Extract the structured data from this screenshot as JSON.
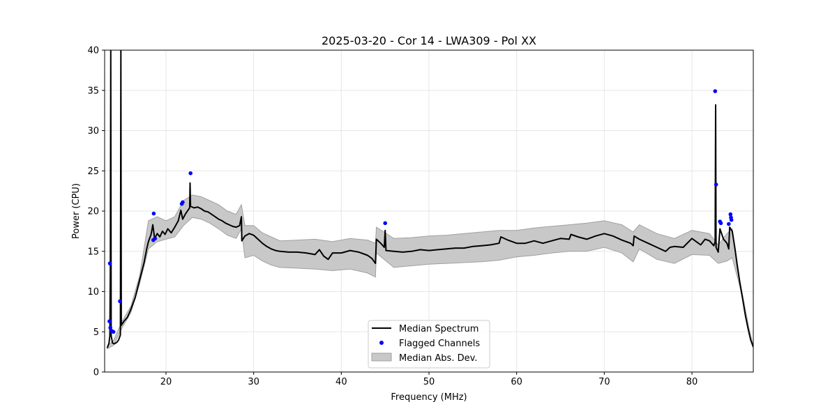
{
  "chart_data": {
    "type": "line",
    "title": "2025-03-20 - Cor 14 - LWA309 - Pol XX",
    "xlabel": "Frequency (MHz)",
    "ylabel": "Power (CPU)",
    "xlim": [
      13.0,
      87.0
    ],
    "ylim": [
      0,
      40
    ],
    "x_ticks": [
      20,
      30,
      40,
      50,
      60,
      70,
      80
    ],
    "y_ticks": [
      0,
      5,
      10,
      15,
      20,
      25,
      30,
      35,
      40
    ],
    "grid": true,
    "legend": {
      "placement": "lower-center",
      "entries": [
        "Median Spectrum",
        "Flagged Channels",
        "Median Abs. Dev."
      ]
    },
    "colors": {
      "median": "#000000",
      "flagged": "#0000ff",
      "band_fill": "#c8c8c8",
      "band_edge": "#a0a0a0",
      "grid": "#e6e6e6"
    },
    "series": [
      {
        "name": "Median Spectrum",
        "points": [
          [
            13.3,
            3.0
          ],
          [
            13.5,
            3.6
          ],
          [
            13.6,
            4.5
          ],
          [
            13.65,
            13.0
          ],
          [
            13.7,
            40.0
          ],
          [
            13.75,
            4.5
          ],
          [
            13.9,
            3.6
          ],
          [
            14.1,
            3.5
          ],
          [
            14.4,
            3.7
          ],
          [
            14.6,
            4.0
          ],
          [
            14.8,
            4.6
          ],
          [
            14.85,
            40.0
          ],
          [
            14.9,
            5.8
          ],
          [
            15.2,
            6.3
          ],
          [
            15.6,
            6.8
          ],
          [
            16.0,
            7.8
          ],
          [
            16.5,
            9.3
          ],
          [
            17.0,
            11.5
          ],
          [
            17.5,
            13.6
          ],
          [
            17.8,
            15.3
          ],
          [
            18.0,
            16.2
          ],
          [
            18.3,
            17.1
          ],
          [
            18.5,
            18.3
          ],
          [
            18.7,
            16.6
          ],
          [
            19.0,
            17.2
          ],
          [
            19.3,
            16.8
          ],
          [
            19.6,
            17.5
          ],
          [
            19.9,
            17.1
          ],
          [
            20.2,
            17.8
          ],
          [
            20.6,
            17.3
          ],
          [
            21.0,
            18.0
          ],
          [
            21.4,
            18.8
          ],
          [
            21.7,
            20.1
          ],
          [
            21.9,
            19.0
          ],
          [
            22.2,
            19.6
          ],
          [
            22.5,
            20.1
          ],
          [
            22.7,
            20.4
          ],
          [
            22.75,
            23.5
          ],
          [
            22.8,
            20.6
          ],
          [
            23.2,
            20.4
          ],
          [
            23.6,
            20.5
          ],
          [
            24.0,
            20.3
          ],
          [
            24.4,
            20.0
          ],
          [
            24.8,
            19.9
          ],
          [
            25.2,
            19.6
          ],
          [
            25.6,
            19.3
          ],
          [
            26.0,
            19.0
          ],
          [
            26.4,
            18.8
          ],
          [
            26.8,
            18.5
          ],
          [
            27.2,
            18.3
          ],
          [
            27.6,
            18.1
          ],
          [
            28.0,
            18.0
          ],
          [
            28.4,
            18.2
          ],
          [
            28.6,
            19.3
          ],
          [
            28.65,
            16.3
          ],
          [
            29.0,
            16.9
          ],
          [
            29.5,
            17.2
          ],
          [
            30.0,
            17.0
          ],
          [
            30.5,
            16.5
          ],
          [
            31.0,
            16.0
          ],
          [
            31.5,
            15.6
          ],
          [
            32.0,
            15.3
          ],
          [
            32.5,
            15.1
          ],
          [
            33.0,
            15.0
          ],
          [
            34.0,
            14.9
          ],
          [
            35.0,
            14.9
          ],
          [
            36.0,
            14.8
          ],
          [
            37.0,
            14.6
          ],
          [
            37.5,
            15.2
          ],
          [
            38.0,
            14.4
          ],
          [
            38.5,
            14.0
          ],
          [
            39.0,
            14.8
          ],
          [
            40.0,
            14.8
          ],
          [
            41.0,
            15.1
          ],
          [
            42.0,
            14.9
          ],
          [
            43.0,
            14.5
          ],
          [
            43.5,
            14.1
          ],
          [
            43.9,
            13.5
          ],
          [
            44.0,
            16.5
          ],
          [
            44.5,
            16.0
          ],
          [
            44.9,
            15.5
          ],
          [
            45.0,
            17.6
          ],
          [
            45.1,
            15.1
          ],
          [
            46.0,
            15.0
          ],
          [
            47.0,
            14.9
          ],
          [
            48.0,
            15.0
          ],
          [
            49.0,
            15.2
          ],
          [
            50.0,
            15.1
          ],
          [
            51.0,
            15.2
          ],
          [
            52.0,
            15.3
          ],
          [
            53.0,
            15.4
          ],
          [
            54.0,
            15.4
          ],
          [
            55.0,
            15.6
          ],
          [
            56.0,
            15.7
          ],
          [
            57.0,
            15.8
          ],
          [
            58.0,
            16.0
          ],
          [
            58.2,
            16.8
          ],
          [
            59.0,
            16.4
          ],
          [
            60.0,
            16.0
          ],
          [
            61.0,
            16.0
          ],
          [
            62.0,
            16.3
          ],
          [
            63.0,
            16.0
          ],
          [
            64.0,
            16.3
          ],
          [
            65.0,
            16.6
          ],
          [
            66.0,
            16.5
          ],
          [
            66.2,
            17.1
          ],
          [
            67.0,
            16.8
          ],
          [
            68.0,
            16.5
          ],
          [
            69.0,
            16.9
          ],
          [
            70.0,
            17.2
          ],
          [
            71.0,
            16.9
          ],
          [
            72.0,
            16.4
          ],
          [
            73.0,
            16.0
          ],
          [
            73.3,
            15.7
          ],
          [
            73.4,
            16.9
          ],
          [
            74.0,
            16.5
          ],
          [
            75.0,
            16.0
          ],
          [
            76.0,
            15.5
          ],
          [
            77.0,
            15.0
          ],
          [
            77.5,
            15.5
          ],
          [
            78.0,
            15.6
          ],
          [
            79.0,
            15.5
          ],
          [
            80.0,
            16.6
          ],
          [
            81.0,
            15.8
          ],
          [
            81.5,
            16.5
          ],
          [
            82.0,
            16.3
          ],
          [
            82.5,
            15.7
          ],
          [
            82.65,
            16.2
          ],
          [
            82.7,
            33.2
          ],
          [
            82.75,
            15.5
          ],
          [
            83.0,
            14.9
          ],
          [
            83.2,
            17.8
          ],
          [
            83.6,
            16.5
          ],
          [
            84.0,
            16.0
          ],
          [
            84.2,
            15.3
          ],
          [
            84.3,
            18.0
          ],
          [
            84.6,
            17.5
          ],
          [
            84.9,
            15.4
          ],
          [
            85.2,
            13.0
          ],
          [
            85.5,
            10.9
          ],
          [
            85.8,
            9.0
          ],
          [
            86.1,
            7.0
          ],
          [
            86.4,
            5.4
          ],
          [
            86.7,
            4.0
          ],
          [
            87.0,
            3.1
          ]
        ]
      },
      {
        "name": "Flagged Channels",
        "points": [
          [
            13.6,
            13.5
          ],
          [
            13.55,
            6.3
          ],
          [
            13.65,
            5.5
          ],
          [
            13.8,
            5.1
          ],
          [
            14.0,
            5.0
          ],
          [
            14.75,
            8.8
          ],
          [
            18.6,
            19.7
          ],
          [
            18.55,
            16.4
          ],
          [
            18.75,
            16.6
          ],
          [
            21.8,
            20.9
          ],
          [
            21.9,
            21.1
          ],
          [
            22.8,
            24.7
          ],
          [
            45.0,
            18.5
          ],
          [
            82.65,
            34.9
          ],
          [
            82.75,
            23.3
          ],
          [
            83.2,
            18.7
          ],
          [
            83.3,
            18.5
          ],
          [
            84.2,
            18.4
          ],
          [
            84.4,
            19.6
          ],
          [
            84.45,
            19.2
          ],
          [
            84.5,
            18.9
          ]
        ]
      },
      {
        "name": "Median Abs. Dev.",
        "x": [
          13.3,
          14.0,
          15.0,
          16.0,
          17.0,
          18.0,
          19.0,
          20.0,
          21.0,
          22.0,
          23.0,
          24.0,
          25.0,
          26.0,
          27.0,
          28.0,
          28.6,
          29.0,
          30.0,
          31.0,
          32.0,
          33.0,
          35.0,
          37.0,
          39.0,
          41.0,
          43.0,
          43.9,
          44.0,
          46.0,
          48.0,
          50.0,
          52.0,
          54.0,
          56.0,
          58.0,
          60.0,
          62.0,
          64.0,
          66.0,
          68.0,
          70.0,
          72.0,
          73.3,
          74.0,
          76.0,
          78.0,
          80.0,
          82.0,
          83.0,
          84.0,
          84.6,
          85.5,
          86.5,
          87.0
        ],
        "lower": [
          2.9,
          3.3,
          5.5,
          7.4,
          11.0,
          15.3,
          16.2,
          16.5,
          16.8,
          18.2,
          19.2,
          19.0,
          18.5,
          17.8,
          17.0,
          16.6,
          17.8,
          14.2,
          14.5,
          13.8,
          13.3,
          13.0,
          12.9,
          12.8,
          12.6,
          12.8,
          12.3,
          11.8,
          14.8,
          13.0,
          13.2,
          13.4,
          13.5,
          13.6,
          13.7,
          13.9,
          14.3,
          14.5,
          14.8,
          15.0,
          15.0,
          15.5,
          14.8,
          13.7,
          15.3,
          14.0,
          13.5,
          14.6,
          14.5,
          13.5,
          13.8,
          14.2,
          10.5,
          5.0,
          3.0
        ],
        "upper": [
          3.2,
          3.9,
          6.3,
          8.2,
          12.0,
          18.8,
          19.3,
          18.8,
          19.3,
          21.3,
          22.0,
          21.8,
          21.3,
          20.8,
          20.0,
          19.6,
          20.8,
          18.2,
          18.2,
          17.3,
          16.8,
          16.3,
          16.4,
          16.5,
          16.2,
          16.6,
          16.4,
          16.0,
          18.0,
          16.6,
          16.7,
          16.9,
          17.0,
          17.2,
          17.4,
          17.6,
          17.6,
          17.9,
          18.1,
          18.3,
          18.5,
          18.8,
          18.3,
          17.4,
          18.3,
          17.2,
          16.6,
          17.6,
          17.2,
          15.8,
          17.2,
          17.8,
          11.2,
          5.5,
          3.2
        ]
      }
    ]
  }
}
